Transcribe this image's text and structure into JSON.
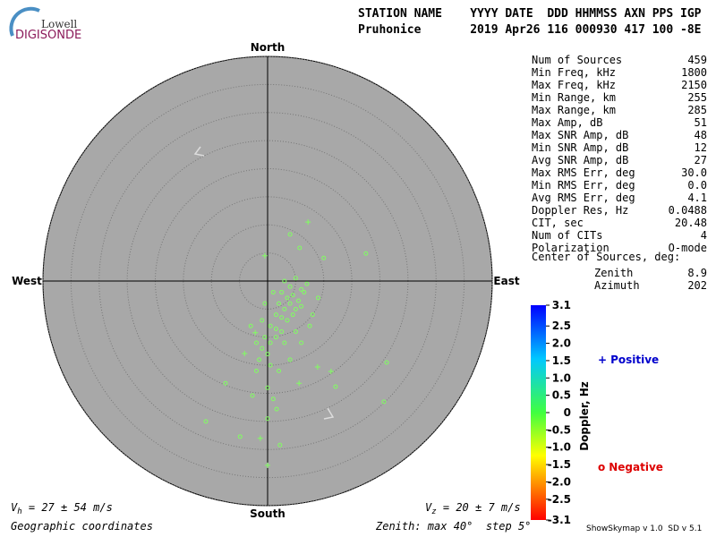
{
  "logo": {
    "line1": "Lowell",
    "line2": "DIGISONDE"
  },
  "header": {
    "labels": "STATION NAME    YYYY DATE  DDD HHMMSS AXN PPS IGP",
    "values": "Pruhonice       2019 Apr26 116 000930 417 100 -8E"
  },
  "stats": {
    "rows": [
      [
        "Num of Sources",
        "459"
      ],
      [
        "Min Freq, kHz",
        "1800"
      ],
      [
        "Max Freq, kHz",
        "2150"
      ],
      [
        "Min Range, km",
        "255"
      ],
      [
        "Max Range, km",
        "285"
      ],
      [
        "Max Amp, dB",
        "51"
      ],
      [
        "Max SNR Amp, dB",
        "48"
      ],
      [
        "Min SNR Amp, dB",
        "12"
      ],
      [
        "Avg SNR Amp, dB",
        "27"
      ],
      [
        "Max RMS Err, deg",
        "30.0"
      ],
      [
        "Min RMS Err, deg",
        "0.0"
      ],
      [
        "Avg RMS Err, deg",
        "4.1"
      ],
      [
        "Doppler Res, Hz",
        "0.0488"
      ],
      [
        "CIT, sec",
        "20.48"
      ],
      [
        "Num of CITs",
        "4"
      ],
      [
        "Polarization",
        "O-mode"
      ]
    ],
    "center_title": "Center of Sources, deg:",
    "center_rows": [
      [
        "Zenith",
        "8.9"
      ],
      [
        "Azimuth",
        "202"
      ]
    ]
  },
  "footer": {
    "vh": [
      "V",
      "h",
      " = 27 ± 54 m/s"
    ],
    "vz": [
      "V",
      "z",
      " = 20 ± 7 m/s"
    ],
    "coords": "Geographic coordinates",
    "zenith": "Zenith: max 40°  step 5°",
    "version": "ShowSkymap v 1.0  SD v 5.1"
  },
  "chart_data": {
    "type": "skymap",
    "directions": {
      "north": "North",
      "south": "South",
      "west": "West",
      "east": "East"
    },
    "xlim": [
      -40,
      40
    ],
    "ylim": [
      -40,
      40
    ],
    "rings": [
      5,
      10,
      15,
      20,
      25,
      30,
      35,
      40
    ],
    "series": [
      {
        "name": "Positive",
        "marker": "+",
        "color": "#80ff60",
        "legend_color": "#0000cc",
        "x": [
          7.2,
          -0.5,
          0,
          -1.3,
          8.9,
          11.3,
          5.6,
          -4.1,
          -2.2
        ],
        "y": [
          10.5,
          4.5,
          -32.8,
          -28,
          -15.3,
          -16.1,
          -18.2,
          -12.9,
          -9.2
        ]
      },
      {
        "name": "Negative",
        "marker": "o",
        "color": "#80ff60",
        "legend_color": "#dd0000",
        "x": [
          17.5,
          4,
          21.2,
          20.7,
          -11,
          -4.9,
          2.2,
          -7.5,
          0,
          12.1,
          5.7,
          10,
          1.6,
          -2.7,
          3,
          4,
          5,
          6,
          2.5,
          3.5,
          4.5,
          5.5,
          6.5,
          7,
          2,
          3,
          4,
          5,
          6,
          1.5,
          2.5,
          3.5,
          4.5,
          0.5,
          1.5,
          2.5,
          -0.5,
          0.5,
          1.5,
          -1,
          0,
          -2,
          -1.5,
          0.5,
          8,
          7.5,
          9,
          -0.5,
          1,
          -3,
          -1,
          3,
          5,
          6,
          2,
          -2,
          4,
          0,
          1
        ],
        "y": [
          4.9,
          8.3,
          -14.5,
          -21.5,
          -25,
          -27.7,
          -29.2,
          -18.2,
          -24.5,
          -18.8,
          5.9,
          4.1,
          -22.8,
          -20.4,
          0,
          -1,
          0.5,
          -1.5,
          -2,
          -3,
          -2.5,
          -3.5,
          -2,
          -0.5,
          -4,
          -5,
          -4,
          -5,
          -4.5,
          -6,
          -6.5,
          -7,
          -6,
          -8,
          -8.5,
          -9,
          -10,
          -11,
          -10,
          -12,
          -13,
          -11,
          -14,
          -15,
          -6,
          -8,
          -3,
          -4,
          -2,
          -8,
          -7,
          -11,
          -9,
          -11,
          -16,
          -16,
          -14,
          -19,
          -21
        ]
      }
    ],
    "colorbar": {
      "label": "Doppler, Hz",
      "lim": [
        -3.1,
        3.1
      ],
      "ticks": [
        3.1,
        2.5,
        {
          "value": 2,
          "label": "2.0"
        },
        1.5,
        {
          "value": 1,
          "label": "1.0"
        },
        0.5,
        0,
        -0.5,
        {
          "value": -1,
          "label": "-1.0"
        },
        -1.5,
        {
          "value": -2,
          "label": "-2.0"
        },
        -2.5,
        -3.1
      ]
    }
  }
}
